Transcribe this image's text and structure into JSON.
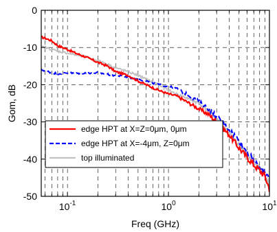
{
  "chart_data": {
    "type": "line",
    "title": "",
    "xlabel": "Freq (GHz)",
    "ylabel": "Gom, dB",
    "xscale": "log",
    "xlim": [
      0.055,
      10
    ],
    "ylim": [
      -50,
      0
    ],
    "grid": true,
    "legend_position": "lower-left",
    "x_ticks": [
      {
        "value": 0.1,
        "base": "10",
        "exp": "-1"
      },
      {
        "value": 1,
        "base": "10",
        "exp": "0"
      },
      {
        "value": 10,
        "base": "10",
        "exp": "1"
      }
    ],
    "y_ticks": [
      {
        "value": 0,
        "label": "0"
      },
      {
        "value": -10,
        "label": "-10"
      },
      {
        "value": -20,
        "label": "-20"
      },
      {
        "value": -30,
        "label": "-30"
      },
      {
        "value": -40,
        "label": "-40"
      },
      {
        "value": -50,
        "label": "-50"
      }
    ],
    "series": [
      {
        "name": "edge HPT  at X=Z=0μm, 0μm",
        "color": "#ff0000",
        "dash": "solid",
        "x": [
          0.055,
          0.06,
          0.07,
          0.08,
          0.1,
          0.12,
          0.15,
          0.2,
          0.25,
          0.3,
          0.4,
          0.5,
          0.6,
          0.8,
          1.0,
          1.2,
          1.5,
          2.0,
          2.5,
          3.0,
          4.0,
          5.0,
          6.0,
          7.0,
          8.0,
          9.0,
          10.0
        ],
        "y": [
          -7.2,
          -7.5,
          -8.2,
          -9.5,
          -10.5,
          -11.5,
          -12.5,
          -14,
          -15,
          -16.5,
          -17.5,
          -19,
          -20,
          -21.5,
          -22.5,
          -23,
          -24.5,
          -26.5,
          -28,
          -30,
          -33.5,
          -37,
          -39.5,
          -41.5,
          -43,
          -44.5,
          -48
        ]
      },
      {
        "name": "edge HPT  at X=-4μm, Z=0μm",
        "color": "#0000ff",
        "dash": "dashed",
        "x": [
          0.055,
          0.06,
          0.07,
          0.08,
          0.1,
          0.12,
          0.15,
          0.2,
          0.25,
          0.3,
          0.4,
          0.5,
          0.6,
          0.8,
          1.0,
          1.2,
          1.5,
          2.0,
          2.5,
          3.0,
          4.0,
          5.0,
          6.0,
          7.0,
          8.0,
          9.0,
          10.0
        ],
        "y": [
          -16,
          -16.2,
          -16.8,
          -17,
          -16.8,
          -17,
          -16.8,
          -16.8,
          -17.2,
          -17.5,
          -18,
          -18.5,
          -19,
          -20,
          -20.5,
          -21,
          -22.5,
          -24.5,
          -26.5,
          -28.5,
          -32,
          -35,
          -38,
          -40.5,
          -42.5,
          -43.5,
          -44.5
        ]
      },
      {
        "name": "top illuminated",
        "color": "#c0c0c0",
        "dash": "solid",
        "x": [
          0.055,
          0.06,
          0.07,
          0.08,
          0.1,
          0.12,
          0.15,
          0.2,
          0.25,
          0.3,
          0.4,
          0.5,
          0.6,
          0.8,
          1.0,
          1.2,
          1.5,
          2.0,
          2.5,
          3.0,
          4.0,
          5.0,
          6.0,
          7.0,
          8.0,
          9.0,
          10.0
        ],
        "y": [
          -9.8,
          -10,
          -10.5,
          -11,
          -11.5,
          -12,
          -12.5,
          -13.5,
          -14.5,
          -15.5,
          -16.5,
          -17.5,
          -18.5,
          -20,
          -21.5,
          -22.5,
          -23.5,
          -25,
          -27,
          -29,
          -33,
          -36.5,
          -39,
          -41,
          -42.5,
          -44,
          -47
        ]
      }
    ]
  }
}
